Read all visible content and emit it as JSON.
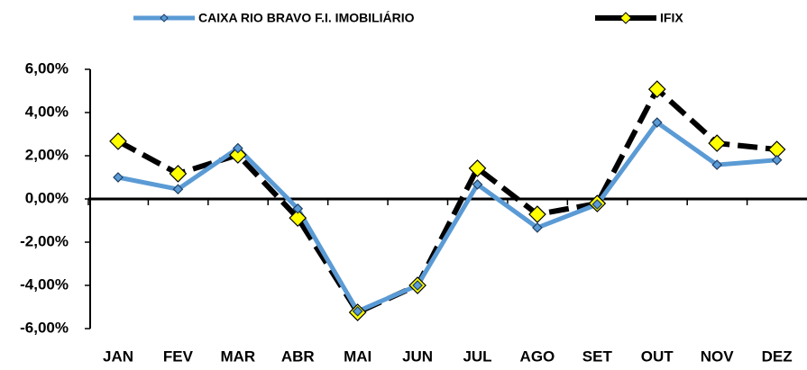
{
  "chart_data": {
    "type": "line",
    "categories": [
      "JAN",
      "FEV",
      "MAR",
      "ABR",
      "MAI",
      "JUN",
      "JUL",
      "AGO",
      "SET",
      "OUT",
      "NOV",
      "DEZ"
    ],
    "series": [
      {
        "name": "CAIXA RIO BRAVO F.I. IMOBILIÁRIO",
        "color": "#5b9bd5",
        "values": [
          1.0,
          0.45,
          2.35,
          -0.45,
          -5.2,
          -4.0,
          0.67,
          -1.33,
          -0.25,
          3.54,
          1.58,
          1.8
        ]
      },
      {
        "name": "IFIX",
        "color": "#000000",
        "marker_color": "#ffff00",
        "values": [
          2.67,
          1.17,
          2.04,
          -0.88,
          -5.25,
          -4.0,
          1.42,
          -0.71,
          -0.21,
          5.08,
          2.58,
          2.29
        ]
      }
    ],
    "ylim": [
      -6,
      6
    ],
    "yticks": [
      {
        "value": -6,
        "label": "-6,00%"
      },
      {
        "value": -4,
        "label": "-4,00%"
      },
      {
        "value": -2,
        "label": "-2,00%"
      },
      {
        "value": 0,
        "label": "0,00%"
      },
      {
        "value": 2,
        "label": "2,00%"
      },
      {
        "value": 4,
        "label": "4,00%"
      },
      {
        "value": 6,
        "label": "6,00%"
      }
    ]
  }
}
